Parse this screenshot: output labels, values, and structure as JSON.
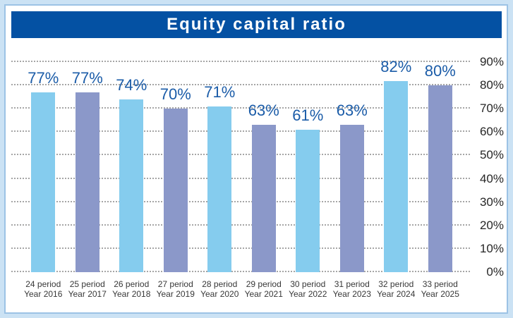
{
  "header": {
    "title": "Equity capital ratio"
  },
  "chart_data": {
    "type": "bar",
    "title": "Equity capital ratio",
    "categories": [
      {
        "line1": "24 period",
        "line2": "Year 2016"
      },
      {
        "line1": "25 period",
        "line2": "Year 2017"
      },
      {
        "line1": "26 period",
        "line2": "Year 2018"
      },
      {
        "line1": "27 period",
        "line2": "Year 2019"
      },
      {
        "line1": "28 period",
        "line2": "Year 2020"
      },
      {
        "line1": "29 period",
        "line2": "Year 2021"
      },
      {
        "line1": "30 period",
        "line2": "Year 2022"
      },
      {
        "line1": "31 period",
        "line2": "Year 2023"
      },
      {
        "line1": "32 period",
        "line2": "Year 2024"
      },
      {
        "line1": "33 period",
        "line2": "Year 2025"
      }
    ],
    "values": [
      77,
      77,
      74,
      70,
      71,
      63,
      61,
      63,
      82,
      80
    ],
    "value_labels": [
      "77%",
      "77%",
      "74%",
      "70%",
      "71%",
      "63%",
      "61%",
      "63%",
      "82%",
      "80%"
    ],
    "ylim": [
      0,
      90
    ],
    "y_ticks": [
      {
        "value": 0,
        "label": "0%"
      },
      {
        "value": 10,
        "label": "10%"
      },
      {
        "value": 20,
        "label": "20%"
      },
      {
        "value": 30,
        "label": "30%"
      },
      {
        "value": 40,
        "label": "40%"
      },
      {
        "value": 50,
        "label": "50%"
      },
      {
        "value": 60,
        "label": "60%"
      },
      {
        "value": 70,
        "label": "70%"
      },
      {
        "value": 80,
        "label": "80%"
      },
      {
        "value": 90,
        "label": "90%"
      }
    ],
    "y_axis_position": "right",
    "grid": "horizontal-dotted",
    "legend": "none",
    "colors": {
      "bar_palette": [
        "#85CCEE",
        "#8B98C9"
      ],
      "value_label": "#1B5CA8",
      "title_bg": "#0451A3",
      "title_text": "#FFFFFF",
      "page_bg": "#CBE2F4",
      "panel_bg": "#FFFFFF",
      "panel_border": "#9CC3E5",
      "gridline": "#A6A6A6",
      "y_tick_text": "#262626",
      "x_tick_text": "#383838"
    }
  }
}
